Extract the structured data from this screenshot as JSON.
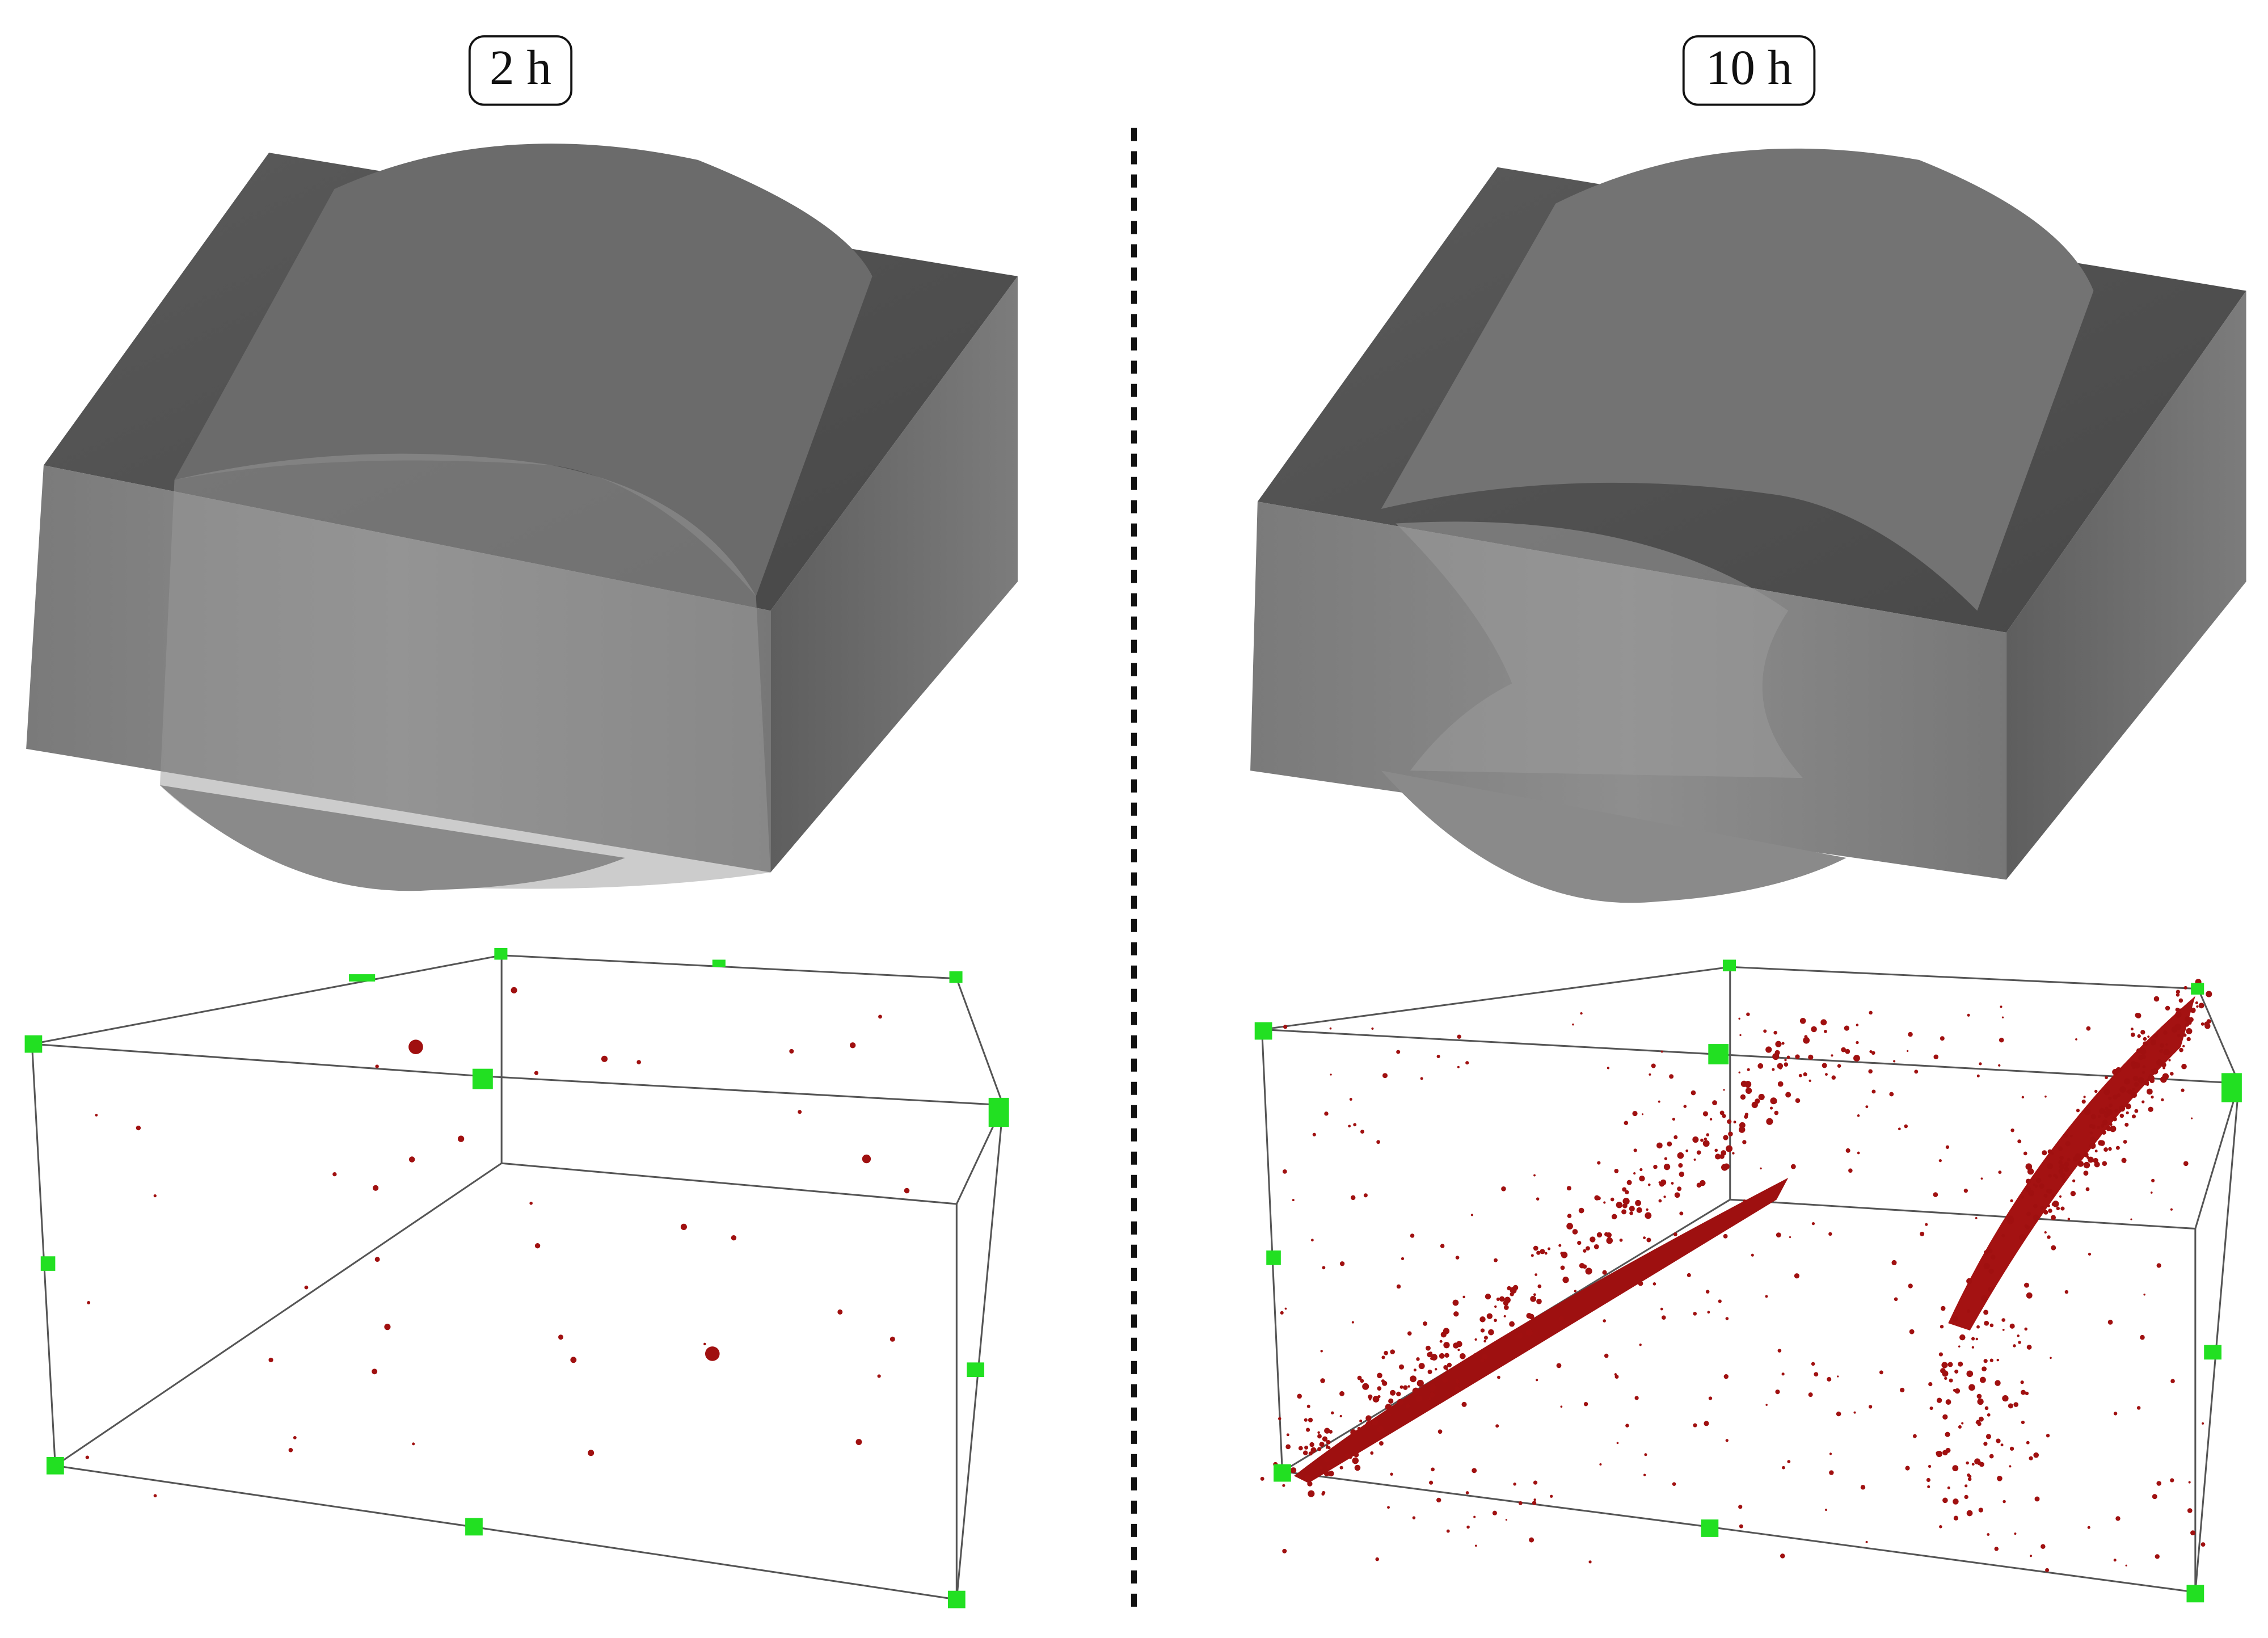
{
  "panels": [
    {
      "label": "2 h"
    },
    {
      "label": "10 h"
    }
  ]
}
